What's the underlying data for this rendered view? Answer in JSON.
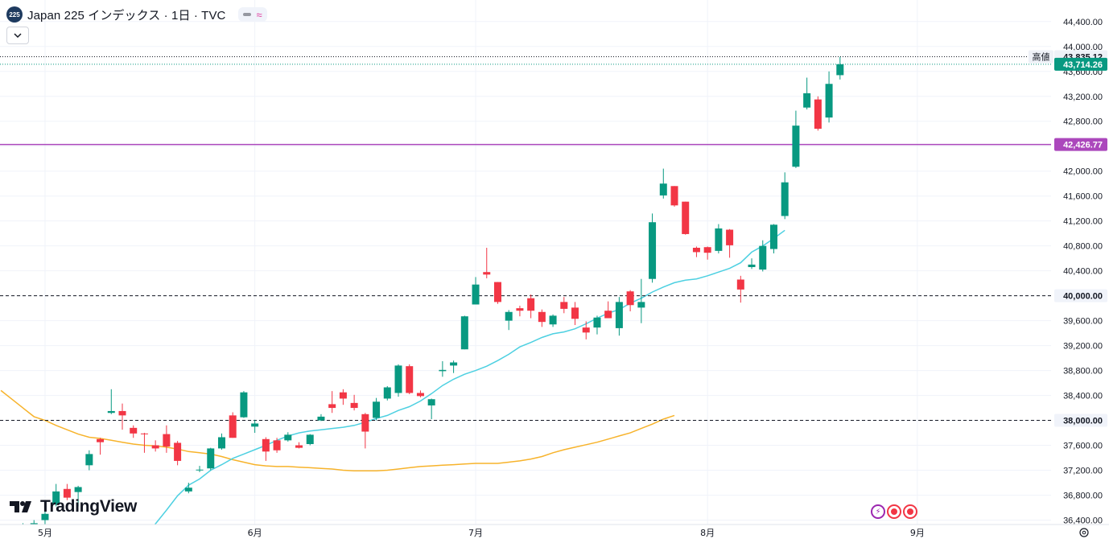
{
  "header": {
    "symbol_badge": "225",
    "title": "Japan 225 インデックス · 1日 · TVC"
  },
  "logo": {
    "text": "TradingView"
  },
  "colors": {
    "up": "#089981",
    "down": "#f23645",
    "ma_fast": "#4dd0e1",
    "ma_slow": "#f7b32b",
    "level_line": "#ab47bc",
    "price_label": "#089981",
    "grid": "#f0f3fa"
  },
  "chart_data": {
    "type": "candlestick",
    "title": "Japan 225 インデックス · 1日 · TVC",
    "ylim": [
      36250,
      44600
    ],
    "yticks": [
      36400,
      36800,
      37200,
      37600,
      38000,
      38400,
      38800,
      39200,
      39600,
      40000,
      40400,
      40800,
      41200,
      41600,
      42000,
      42400,
      42800,
      43200,
      43600,
      44000,
      44400
    ],
    "ytick_labels": [
      "36,400.00",
      "36,800.00",
      "37,200.00",
      "37,600.00",
      "38,000.00",
      "38,400.00",
      "38,800.00",
      "39,200.00",
      "39,600.00",
      "40,000.00",
      "40,400.00",
      "40,800.00",
      "41,200.00",
      "41,600.00",
      "42,000.00",
      "42,400.00",
      "42,800.00",
      "43,200.00",
      "43,600.00",
      "44,000.00",
      "44,400.00"
    ],
    "xtick_labels": [
      {
        "label": "5月",
        "bar": 3
      },
      {
        "label": "6月",
        "bar": 22
      },
      {
        "label": "7月",
        "bar": 42
      },
      {
        "label": "8月",
        "bar": 63
      },
      {
        "label": "9月",
        "bar": 82
      }
    ],
    "candles": [
      {
        "o": 36000,
        "h": 36150,
        "l": 35850,
        "c": 36050
      },
      {
        "o": 36100,
        "h": 36350,
        "l": 35950,
        "c": 36200
      },
      {
        "o": 36200,
        "h": 36400,
        "l": 36100,
        "c": 36350
      },
      {
        "o": 36400,
        "h": 36560,
        "l": 36300,
        "c": 36500
      },
      {
        "o": 36650,
        "h": 36980,
        "l": 36620,
        "c": 36860
      },
      {
        "o": 36900,
        "h": 36980,
        "l": 36720,
        "c": 36760
      },
      {
        "o": 36850,
        "h": 36950,
        "l": 36620,
        "c": 36930
      },
      {
        "o": 37280,
        "h": 37520,
        "l": 37200,
        "c": 37460
      },
      {
        "o": 37700,
        "h": 37720,
        "l": 37450,
        "c": 37650
      },
      {
        "o": 38120,
        "h": 38500,
        "l": 38100,
        "c": 38150
      },
      {
        "o": 38150,
        "h": 38270,
        "l": 37850,
        "c": 38080
      },
      {
        "o": 37880,
        "h": 37920,
        "l": 37720,
        "c": 37790
      },
      {
        "o": 37790,
        "h": 37800,
        "l": 37480,
        "c": 37780
      },
      {
        "o": 37600,
        "h": 37680,
        "l": 37500,
        "c": 37550
      },
      {
        "o": 37780,
        "h": 37920,
        "l": 37480,
        "c": 37580
      },
      {
        "o": 37640,
        "h": 37670,
        "l": 37280,
        "c": 37350
      },
      {
        "o": 36860,
        "h": 37000,
        "l": 36830,
        "c": 36920
      },
      {
        "o": 37200,
        "h": 37270,
        "l": 37170,
        "c": 37210
      },
      {
        "o": 37230,
        "h": 37560,
        "l": 37200,
        "c": 37550
      },
      {
        "o": 37550,
        "h": 37790,
        "l": 37530,
        "c": 37730
      },
      {
        "o": 38080,
        "h": 38130,
        "l": 37720,
        "c": 37720
      },
      {
        "o": 38050,
        "h": 38470,
        "l": 38040,
        "c": 38450
      },
      {
        "o": 37900,
        "h": 38010,
        "l": 37800,
        "c": 37950
      },
      {
        "o": 37700,
        "h": 37730,
        "l": 37350,
        "c": 37500
      },
      {
        "o": 37680,
        "h": 37720,
        "l": 37480,
        "c": 37520
      },
      {
        "o": 37680,
        "h": 37810,
        "l": 37660,
        "c": 37770
      },
      {
        "o": 37600,
        "h": 37650,
        "l": 37550,
        "c": 37560
      },
      {
        "o": 37620,
        "h": 37780,
        "l": 37600,
        "c": 37770
      },
      {
        "o": 38000,
        "h": 38100,
        "l": 37990,
        "c": 38060
      },
      {
        "o": 38260,
        "h": 38470,
        "l": 38120,
        "c": 38200
      },
      {
        "o": 38450,
        "h": 38500,
        "l": 38250,
        "c": 38350
      },
      {
        "o": 38280,
        "h": 38410,
        "l": 38160,
        "c": 38200
      },
      {
        "o": 38100,
        "h": 38120,
        "l": 37550,
        "c": 37820
      },
      {
        "o": 38040,
        "h": 38360,
        "l": 38000,
        "c": 38300
      },
      {
        "o": 38350,
        "h": 38550,
        "l": 38320,
        "c": 38530
      },
      {
        "o": 38440,
        "h": 38900,
        "l": 38380,
        "c": 38880
      },
      {
        "o": 38870,
        "h": 38900,
        "l": 38420,
        "c": 38440
      },
      {
        "o": 38440,
        "h": 38480,
        "l": 38370,
        "c": 38390
      },
      {
        "o": 38240,
        "h": 38350,
        "l": 38020,
        "c": 38340
      },
      {
        "o": 38790,
        "h": 38950,
        "l": 38700,
        "c": 38810
      },
      {
        "o": 38880,
        "h": 38960,
        "l": 38760,
        "c": 38930
      },
      {
        "o": 39140,
        "h": 39680,
        "l": 39140,
        "c": 39670
      },
      {
        "o": 39860,
        "h": 40300,
        "l": 39860,
        "c": 40180
      },
      {
        "o": 40380,
        "h": 40770,
        "l": 40280,
        "c": 40340
      },
      {
        "o": 40220,
        "h": 40220,
        "l": 39870,
        "c": 39900
      },
      {
        "o": 39600,
        "h": 39770,
        "l": 39450,
        "c": 39740
      },
      {
        "o": 39800,
        "h": 39840,
        "l": 39670,
        "c": 39760
      },
      {
        "o": 39960,
        "h": 40020,
        "l": 39640,
        "c": 39760
      },
      {
        "o": 39740,
        "h": 39780,
        "l": 39500,
        "c": 39580
      },
      {
        "o": 39540,
        "h": 39700,
        "l": 39500,
        "c": 39680
      },
      {
        "o": 39900,
        "h": 39980,
        "l": 39720,
        "c": 39790
      },
      {
        "o": 39810,
        "h": 39900,
        "l": 39530,
        "c": 39630
      },
      {
        "o": 39490,
        "h": 39590,
        "l": 39300,
        "c": 39410
      },
      {
        "o": 39490,
        "h": 39680,
        "l": 39380,
        "c": 39650
      },
      {
        "o": 39760,
        "h": 39910,
        "l": 39640,
        "c": 39640
      },
      {
        "o": 39480,
        "h": 39980,
        "l": 39360,
        "c": 39900
      },
      {
        "o": 40070,
        "h": 40090,
        "l": 39750,
        "c": 39850
      },
      {
        "o": 39810,
        "h": 40270,
        "l": 39560,
        "c": 39900
      },
      {
        "o": 40270,
        "h": 41320,
        "l": 40210,
        "c": 41180
      },
      {
        "o": 41610,
        "h": 42040,
        "l": 41560,
        "c": 41800
      },
      {
        "o": 41760,
        "h": 41760,
        "l": 41430,
        "c": 41450
      },
      {
        "o": 41510,
        "h": 41510,
        "l": 40980,
        "c": 40990
      },
      {
        "o": 40770,
        "h": 40790,
        "l": 40620,
        "c": 40700
      },
      {
        "o": 40780,
        "h": 40790,
        "l": 40580,
        "c": 40690
      },
      {
        "o": 40720,
        "h": 41150,
        "l": 40680,
        "c": 41080
      },
      {
        "o": 41060,
        "h": 41070,
        "l": 40610,
        "c": 40810
      },
      {
        "o": 40260,
        "h": 40320,
        "l": 39890,
        "c": 40100
      },
      {
        "o": 40460,
        "h": 40600,
        "l": 40430,
        "c": 40500
      },
      {
        "o": 40420,
        "h": 40890,
        "l": 40390,
        "c": 40800
      },
      {
        "o": 40750,
        "h": 41150,
        "l": 40680,
        "c": 41140
      },
      {
        "o": 41280,
        "h": 41980,
        "l": 41230,
        "c": 41820
      },
      {
        "o": 42070,
        "h": 42970,
        "l": 42050,
        "c": 42730
      },
      {
        "o": 43020,
        "h": 43500,
        "l": 42990,
        "c": 43250
      },
      {
        "o": 43150,
        "h": 43200,
        "l": 42650,
        "c": 42680
      },
      {
        "o": 42860,
        "h": 43600,
        "l": 42780,
        "c": 43400
      },
      {
        "o": 43540,
        "h": 43835.12,
        "l": 43470,
        "c": 43714.26
      }
    ],
    "ma_fast": {
      "start_bar": 13,
      "values": [
        36340,
        36560,
        36790,
        36960,
        37060,
        37200,
        37290,
        37390,
        37460,
        37530,
        37600,
        37680,
        37750,
        37800,
        37830,
        37850,
        37870,
        37890,
        37920,
        37970,
        38030,
        38080,
        38160,
        38220,
        38310,
        38430,
        38560,
        38660,
        38740,
        38800,
        38870,
        38960,
        39060,
        39180,
        39250,
        39330,
        39390,
        39420,
        39470,
        39550,
        39640,
        39720,
        39780,
        39880,
        39960,
        40060,
        40140,
        40210,
        40250,
        40270,
        40320,
        40380,
        40440,
        40530,
        40700,
        40800,
        40920,
        41050
      ]
    },
    "ma_slow": {
      "start_bar": 0,
      "values": [
        38340,
        38200,
        38060,
        38000,
        37920,
        37850,
        37780,
        37730,
        37710,
        37680,
        37650,
        37620,
        37600,
        37590,
        37570,
        37540,
        37500,
        37480,
        37460,
        37420,
        37370,
        37330,
        37290,
        37270,
        37260,
        37260,
        37250,
        37240,
        37230,
        37220,
        37200,
        37190,
        37190,
        37190,
        37200,
        37220,
        37240,
        37260,
        37270,
        37280,
        37290,
        37300,
        37310,
        37310,
        37310,
        37330,
        37350,
        37380,
        37420,
        37480,
        37530,
        37570,
        37610,
        37650,
        37700,
        37750,
        37800,
        37870,
        37940,
        38020,
        38080
      ]
    },
    "levels": [
      {
        "value": 38000,
        "label": "38,000.00",
        "style": "dashed",
        "color": "#131722"
      },
      {
        "value": 40000,
        "label": "40,000.00",
        "style": "dashed",
        "color": "#131722"
      },
      {
        "value": 42426.77,
        "label": "42,426.77",
        "style": "solid",
        "color": "#ab47bc"
      }
    ],
    "high": {
      "label": "高値",
      "value": 43835.12,
      "value_label": "43,835.12"
    },
    "last": {
      "value": 43714.26,
      "value_label": "43,714.26"
    }
  }
}
